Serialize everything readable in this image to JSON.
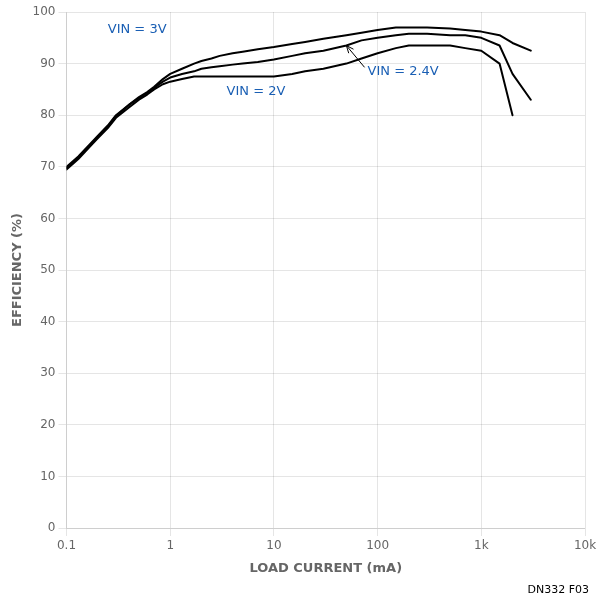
{
  "chart_data": {
    "type": "line",
    "title": "",
    "x_label": "LOAD CURRENT (mA)",
    "y_label": "EFFICIENCY (%)",
    "caption": "DN332 F03",
    "log": "x",
    "grid": true,
    "xlim": [
      0.1,
      10000
    ],
    "ylim": [
      0,
      100
    ],
    "xticks": [
      0.1,
      1,
      10,
      100,
      {
        "value": 1000,
        "label": "1k"
      },
      {
        "value": 10000,
        "label": "10k"
      }
    ],
    "yticks": [
      0,
      10,
      20,
      30,
      40,
      50,
      60,
      70,
      80,
      90,
      100
    ],
    "series": [
      {
        "color": "#000000",
        "x": [
          0.1,
          0.13,
          0.17,
          0.2,
          0.25,
          0.3,
          0.4,
          0.5,
          0.6,
          0.7,
          0.85,
          1.0,
          1.3,
          1.7,
          2.0,
          2.5,
          3.0,
          4.0,
          5.0,
          7.0,
          10,
          15,
          20,
          30,
          50,
          70,
          100,
          150,
          200,
          300,
          500,
          700,
          1000,
          1500,
          2000
        ],
        "values": [
          69.5,
          71.5,
          74,
          75.5,
          77.5,
          79.5,
          81.5,
          83,
          84,
          85,
          86,
          86.5,
          87,
          87.5,
          87.5,
          87.5,
          87.5,
          87.5,
          87.5,
          87.5,
          87.5,
          88,
          88.5,
          89,
          90,
          91,
          92,
          93,
          93.5,
          93.5,
          93.5,
          93,
          92.5,
          90,
          80
        ]
      },
      {
        "color": "#000000",
        "x": [
          0.1,
          0.13,
          0.17,
          0.2,
          0.25,
          0.3,
          0.4,
          0.5,
          0.6,
          0.7,
          0.85,
          1.0,
          1.3,
          1.7,
          2.0,
          2.5,
          3.0,
          4.0,
          5.0,
          7.0,
          10,
          15,
          20,
          30,
          50,
          70,
          100,
          150,
          200,
          300,
          500,
          700,
          1000,
          1500,
          2000,
          3000
        ],
        "values": [
          69.8,
          71.8,
          74.2,
          75.8,
          77.8,
          79.8,
          82,
          83.3,
          84.3,
          85.3,
          86.5,
          87.3,
          88,
          88.5,
          89,
          89.3,
          89.5,
          89.8,
          90,
          90.3,
          90.8,
          91.5,
          92,
          92.5,
          93.5,
          94.5,
          95,
          95.5,
          95.8,
          95.8,
          95.5,
          95.5,
          95,
          93.5,
          88,
          83
        ]
      },
      {
        "color": "#000000",
        "x": [
          0.1,
          0.13,
          0.17,
          0.2,
          0.25,
          0.3,
          0.4,
          0.5,
          0.6,
          0.7,
          0.85,
          1.0,
          1.3,
          1.7,
          2.0,
          2.5,
          3.0,
          4.0,
          5.0,
          7.0,
          10,
          15,
          20,
          30,
          50,
          70,
          100,
          150,
          200,
          300,
          500,
          700,
          1000,
          1500,
          2000,
          3000
        ],
        "values": [
          70,
          72,
          74.5,
          76,
          78,
          80,
          82,
          83.5,
          84.5,
          85.5,
          87,
          88,
          89,
          90,
          90.5,
          91,
          91.5,
          92,
          92.3,
          92.8,
          93.2,
          93.8,
          94.2,
          94.8,
          95.5,
          96,
          96.5,
          97,
          97,
          97,
          96.8,
          96.5,
          96.2,
          95.5,
          94,
          92.5
        ]
      }
    ],
    "annotations": [
      {
        "text": "VIN = 3V",
        "x": 0.25,
        "y": 96.5,
        "color": "#1a5fb4"
      },
      {
        "text": "VIN = 2V",
        "x": 3.5,
        "y": 84.5,
        "color": "#1a5fb4"
      },
      {
        "text": "VIN = 2.4V",
        "x": 80,
        "y": 88.5,
        "arrow_x": 50,
        "arrow_y": 93.5,
        "color": "#1a5fb4"
      }
    ]
  }
}
